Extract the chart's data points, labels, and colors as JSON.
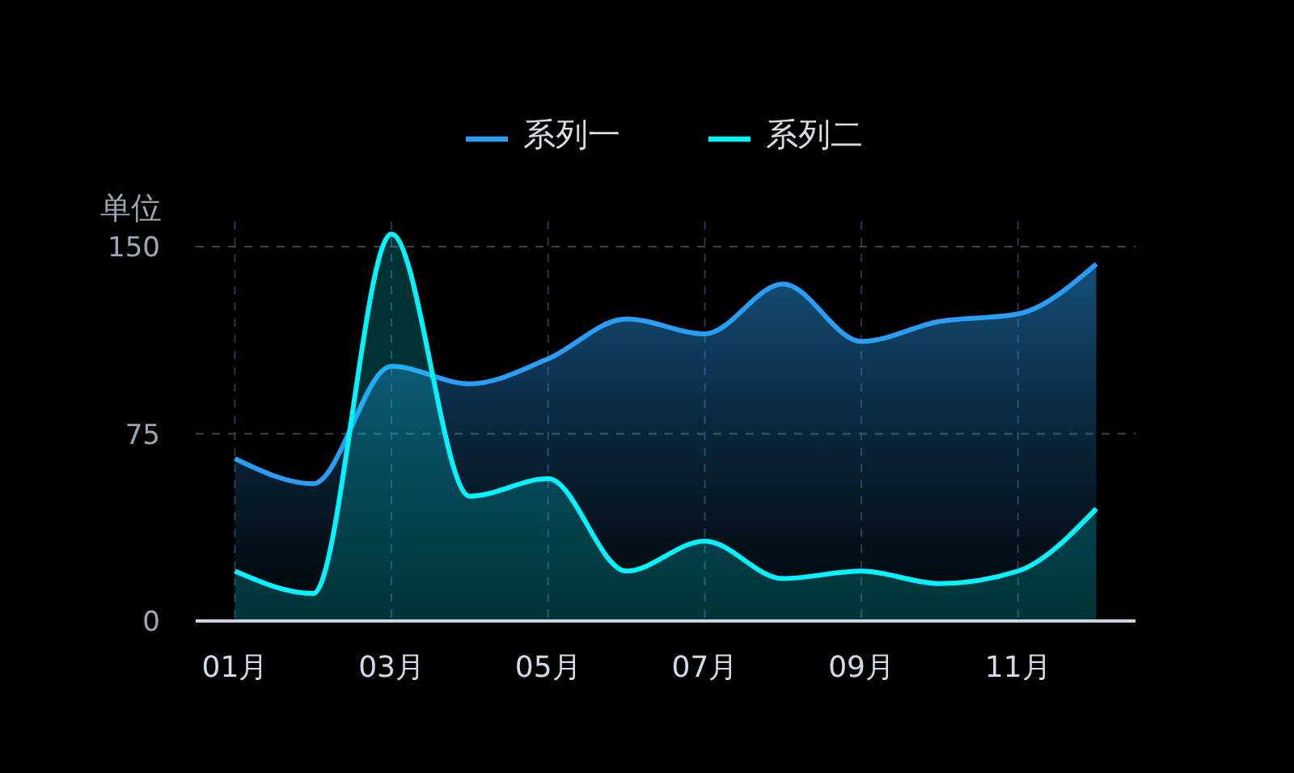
{
  "chart_data": {
    "type": "area",
    "ylabel": "单位",
    "categories": [
      "01月",
      null,
      "03月",
      null,
      "05月",
      null,
      "07月",
      null,
      "09月",
      null,
      "11月",
      null
    ],
    "series": [
      {
        "name": "系列一",
        "color": "#2a9df4",
        "values": [
          65,
          55,
          102,
          95,
          105,
          121,
          115,
          135,
          112,
          120,
          123,
          143
        ]
      },
      {
        "name": "系列二",
        "color": "#00f5ff",
        "values": [
          20,
          11,
          155,
          50,
          57,
          20,
          32,
          17,
          20,
          15,
          20,
          45
        ]
      }
    ],
    "ylim": [
      0,
      160
    ],
    "yticks": [
      0,
      75,
      150
    ],
    "grid": true,
    "legend": "top"
  }
}
